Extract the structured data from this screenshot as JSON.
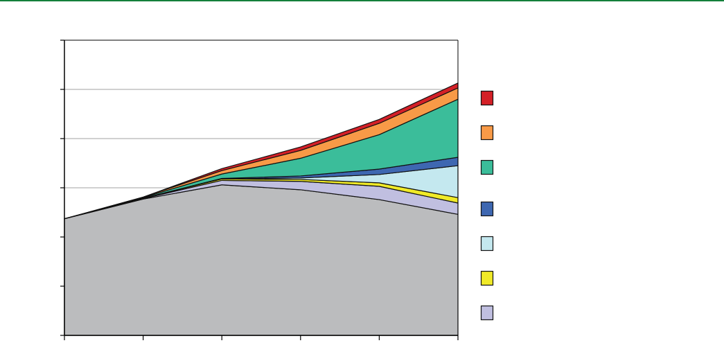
{
  "chart_data": {
    "type": "area",
    "stacked": true,
    "title": "",
    "xlabel": "",
    "ylabel": "",
    "x": [
      0,
      1,
      2,
      3,
      4,
      5
    ],
    "ylim": [
      0,
      6
    ],
    "y_ticks": [
      0,
      1,
      2,
      3,
      4,
      5,
      6
    ],
    "grid": true,
    "legend_position": "right",
    "series": [
      {
        "color": "#bbbcbe",
        "values": [
          2.37,
          2.77,
          3.06,
          2.96,
          2.76,
          2.46
        ]
      },
      {
        "color": "#c0bfe0",
        "values": [
          0,
          0.01,
          0.09,
          0.17,
          0.27,
          0.23
        ]
      },
      {
        "color": "#f0ea28",
        "values": [
          0,
          0.01,
          0.03,
          0.04,
          0.07,
          0.11
        ]
      },
      {
        "color": "#c4e8ef",
        "values": [
          0,
          0,
          0,
          0.03,
          0.17,
          0.65
        ]
      },
      {
        "color": "#3e67b1",
        "values": [
          0,
          0,
          0.01,
          0.04,
          0.11,
          0.17
        ]
      },
      {
        "color": "#3bbd9a",
        "values": [
          0,
          0.01,
          0.09,
          0.36,
          0.7,
          1.18
        ]
      },
      {
        "color": "#f89a47",
        "values": [
          0,
          0.01,
          0.07,
          0.16,
          0.23,
          0.23
        ]
      },
      {
        "color": "#d42027",
        "values": [
          0,
          0,
          0.04,
          0.07,
          0.08,
          0.1
        ]
      }
    ],
    "legend_order": [
      7,
      6,
      5,
      4,
      3,
      2,
      1
    ]
  }
}
